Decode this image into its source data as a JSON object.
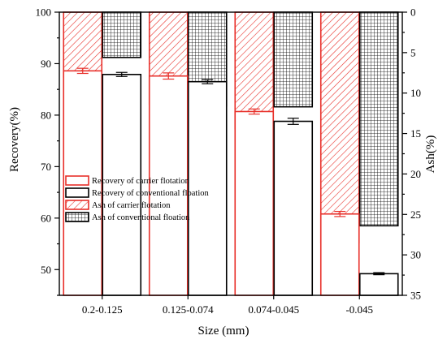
{
  "chart_data": {
    "type": "bar",
    "categories": [
      "0.2-0.125",
      "0.125-0.074",
      "0.074-0.045",
      "-0.045"
    ],
    "xlabel": "Size (mm)",
    "ylabel_left": "Recovery(%)",
    "ylabel_right": "Ash(%)",
    "ylim_left": [
      45,
      100
    ],
    "ylim_right": [
      35,
      0
    ],
    "yticks_left": [
      50,
      60,
      70,
      80,
      90,
      100
    ],
    "yticks_right": [
      0,
      5,
      10,
      15,
      20,
      25,
      30,
      35
    ],
    "grid": false,
    "legend_position": "left-center",
    "series": [
      {
        "name": "Recovery of carrier flotation",
        "axis": "left",
        "style": "outline",
        "color": "#e8302a",
        "values": [
          88.6,
          87.6,
          80.7,
          60.8
        ],
        "errors": [
          0.5,
          0.6,
          0.5,
          0.5
        ]
      },
      {
        "name": "Recovery of conventional floation",
        "axis": "left",
        "style": "outline",
        "color": "#000000",
        "values": [
          87.9,
          86.5,
          78.8,
          49.2
        ],
        "errors": [
          0.4,
          0.4,
          0.6,
          0.2
        ]
      },
      {
        "name": "Ash of carrier flotation",
        "axis": "right",
        "style": "hatch",
        "color": "#e8302a",
        "values": [
          8.0,
          11.4,
          14.4,
          28.5
        ]
      },
      {
        "name": "Ash of conventional floation",
        "axis": "right",
        "style": "grid",
        "color": "#000000",
        "values": [
          5.6,
          11.6,
          11.7,
          26.4
        ]
      }
    ]
  }
}
